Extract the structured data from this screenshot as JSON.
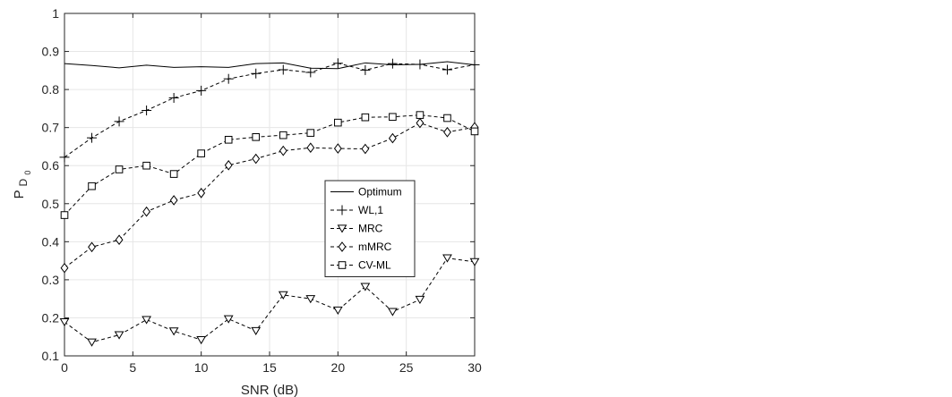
{
  "chart_data": {
    "type": "line",
    "xlabel": "SNR (dB)",
    "ylabel": "P",
    "ylabel_sub": "D",
    "ylabel_subsub": "0",
    "xlim": [
      0,
      30
    ],
    "ylim": [
      0.1,
      1
    ],
    "xticks": [
      0,
      5,
      10,
      15,
      20,
      25,
      30
    ],
    "yticks": [
      0.1,
      0.2,
      0.3,
      0.4,
      0.5,
      0.6,
      0.7,
      0.8,
      0.9,
      1
    ],
    "ytick_labels": [
      "0.1",
      "0.2",
      "0.3",
      "0.4",
      "0.5",
      "0.6",
      "0.7",
      "0.8",
      "0.9",
      "1"
    ],
    "grid": true,
    "legend_position": "center-right",
    "x": [
      0,
      2,
      4,
      6,
      8,
      10,
      12,
      14,
      16,
      18,
      20,
      22,
      24,
      26,
      28,
      30
    ],
    "series": [
      {
        "name": "Optimum",
        "style": "solid",
        "marker": "none",
        "values": [
          0.868,
          0.863,
          0.857,
          0.864,
          0.858,
          0.86,
          0.858,
          0.868,
          0.87,
          0.856,
          0.855,
          0.87,
          0.865,
          0.866,
          0.873,
          0.865
        ]
      },
      {
        "name": "WL,1",
        "style": "dashed",
        "marker": "plus",
        "values": [
          0.622,
          0.673,
          0.716,
          0.745,
          0.778,
          0.797,
          0.828,
          0.842,
          0.852,
          0.845,
          0.869,
          0.851,
          0.868,
          0.866,
          0.852,
          0.865
        ]
      },
      {
        "name": "MRC",
        "style": "dashed",
        "marker": "triangle-down",
        "values": [
          0.189,
          0.136,
          0.155,
          0.195,
          0.165,
          0.142,
          0.197,
          0.166,
          0.26,
          0.25,
          0.22,
          0.282,
          0.216,
          0.248,
          0.357,
          0.347
        ]
      },
      {
        "name": "mMRC",
        "style": "dashed",
        "marker": "diamond",
        "values": [
          0.331,
          0.386,
          0.405,
          0.479,
          0.509,
          0.528,
          0.601,
          0.618,
          0.639,
          0.647,
          0.645,
          0.644,
          0.672,
          0.712,
          0.688,
          0.701
        ]
      },
      {
        "name": "CV-ML",
        "style": "dashed",
        "marker": "square",
        "values": [
          0.47,
          0.546,
          0.59,
          0.6,
          0.578,
          0.632,
          0.668,
          0.675,
          0.68,
          0.686,
          0.713,
          0.727,
          0.728,
          0.733,
          0.725,
          0.69
        ]
      }
    ]
  }
}
